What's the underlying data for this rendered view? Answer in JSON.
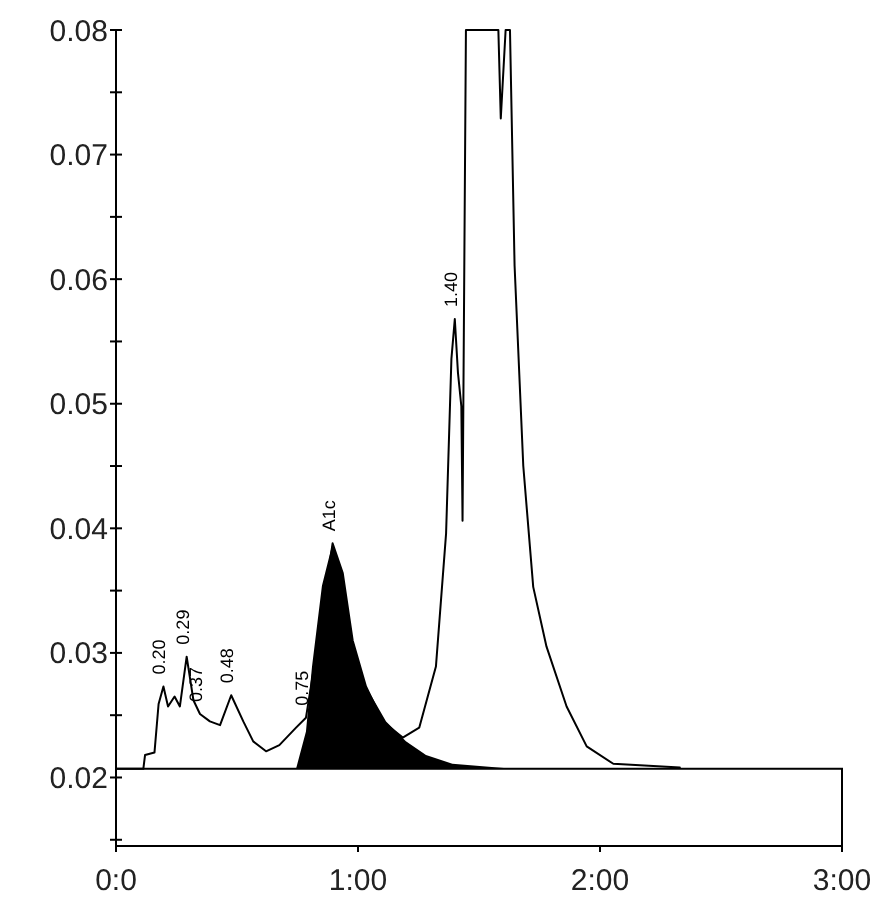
{
  "chart_data": {
    "type": "line",
    "xlim": [
      0,
      3
    ],
    "xticks": [
      {
        "value": 0,
        "label": "0:0"
      },
      {
        "value": 1,
        "label": "1:00"
      },
      {
        "value": 2,
        "label": "2:00"
      },
      {
        "value": 3,
        "label": "3:00"
      }
    ],
    "ylim": [
      0.0145,
      0.08
    ],
    "yticks": [
      {
        "value": 0.015,
        "label": null
      },
      0.02,
      {
        "value": 0.025,
        "label": null
      },
      0.03,
      {
        "value": 0.035,
        "label": null
      },
      0.04,
      {
        "value": 0.045,
        "label": null
      },
      0.05,
      {
        "value": 0.055,
        "label": null
      },
      0.06,
      {
        "value": 0.065,
        "label": null
      },
      0.07,
      {
        "value": 0.075,
        "label": null
      },
      0.08
    ],
    "grid": false,
    "series": [
      {
        "type": "area",
        "color": "#000000",
        "x": [
          0.744,
          0.785,
          0.81,
          0.851,
          0.895,
          0.937,
          0.978,
          1.033,
          1.116,
          1.198,
          1.281,
          1.39,
          1.636
        ],
        "values": [
          0.0207,
          0.0237,
          0.0289,
          0.0354,
          0.0388,
          0.0364,
          0.031,
          0.0273,
          0.0245,
          0.0229,
          0.0218,
          0.0211,
          0.0207
        ]
      },
      {
        "color": "#000000",
        "x": [
          0,
          0.113,
          0.12,
          0.159,
          0.176,
          0.196,
          0.215,
          0.242,
          0.264,
          0.292,
          0.32,
          0.347,
          0.388,
          0.43,
          0.476,
          0.526,
          0.567,
          0.62,
          0.675,
          0.744,
          0.785,
          0.84,
          0.895,
          0.937,
          0.978,
          1.033,
          1.102,
          1.185,
          1.253,
          1.322,
          1.364,
          1.386,
          1.4,
          1.413,
          1.427,
          1.432,
          1.446,
          1.58,
          1.59,
          1.61,
          1.628,
          1.647,
          1.683,
          1.724,
          1.779,
          1.862,
          1.945,
          2.055,
          2.33
        ],
        "values": [
          0.0207,
          0.0207,
          0.0218,
          0.022,
          0.0259,
          0.0273,
          0.0257,
          0.0265,
          0.0257,
          0.0297,
          0.0262,
          0.0251,
          0.0245,
          0.0242,
          0.0266,
          0.0245,
          0.0229,
          0.0221,
          0.0226,
          0.024,
          0.0248,
          0.0315,
          0.0388,
          0.0364,
          0.031,
          0.0273,
          0.0245,
          0.0232,
          0.024,
          0.0289,
          0.0396,
          0.0536,
          0.0568,
          0.0525,
          0.0498,
          0.0406,
          0.08,
          0.08,
          0.0729,
          0.08,
          0.08,
          0.0611,
          0.045,
          0.0353,
          0.0305,
          0.0257,
          0.0225,
          0.0211,
          0.0208
        ]
      }
    ],
    "bands": [
      {
        "axis": "y",
        "from": 0.0145,
        "to": 0.0207,
        "color": "#ffffff"
      }
    ],
    "annotations": [
      {
        "text": "0.20",
        "x": 0.196,
        "y": 0.0273
      },
      {
        "text": "0.29",
        "x": 0.292,
        "y": 0.0297
      },
      {
        "text": "0.37",
        "x": 0.347,
        "y": 0.0251
      },
      {
        "text": "0.48",
        "x": 0.476,
        "y": 0.0266
      },
      {
        "text": "0.75",
        "x": 0.785,
        "y": 0.0248
      },
      {
        "text": "A1c",
        "x": 0.895,
        "y": 0.0388
      },
      {
        "text": "1.40",
        "x": 1.4,
        "y": 0.0568
      }
    ]
  }
}
